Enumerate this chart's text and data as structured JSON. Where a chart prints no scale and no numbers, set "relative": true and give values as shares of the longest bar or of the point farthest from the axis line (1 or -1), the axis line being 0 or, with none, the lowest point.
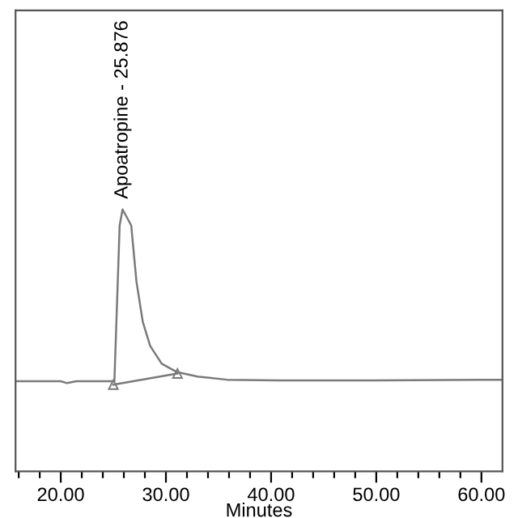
{
  "chart_data": {
    "type": "line",
    "xlabel": "Minutes",
    "relative": true,
    "xlim": [
      15.7,
      62
    ],
    "xticks": [
      {
        "value": 16,
        "label": null
      },
      {
        "value": 18,
        "label": null
      },
      {
        "value": 20,
        "label": "20.00"
      },
      {
        "value": 22,
        "label": null
      },
      {
        "value": 24,
        "label": null
      },
      {
        "value": 26,
        "label": null
      },
      {
        "value": 28,
        "label": null
      },
      {
        "value": 30,
        "label": "30.00"
      },
      {
        "value": 32,
        "label": null
      },
      {
        "value": 34,
        "label": null
      },
      {
        "value": 36,
        "label": null
      },
      {
        "value": 38,
        "label": null
      },
      {
        "value": 40,
        "label": "40.00"
      },
      {
        "value": 42,
        "label": null
      },
      {
        "value": 44,
        "label": null
      },
      {
        "value": 46,
        "label": null
      },
      {
        "value": 48,
        "label": null
      },
      {
        "value": 50,
        "label": "50.00"
      },
      {
        "value": 52,
        "label": null
      },
      {
        "value": 54,
        "label": null
      },
      {
        "value": 56,
        "label": null
      },
      {
        "value": 58,
        "label": null
      },
      {
        "value": 60,
        "label": "60.00"
      }
    ],
    "grid": false,
    "legend": false,
    "series": [
      {
        "color": "#7a7a7a",
        "marker": "none",
        "x": [
          15.7,
          20.0,
          20.6,
          21.5,
          25.1,
          25.6,
          25.876,
          26.7,
          27.2,
          27.8,
          28.5,
          29.6,
          31.0,
          33.0,
          35.8,
          40.7,
          50.0,
          60.0,
          62.0
        ],
        "values": [
          0.344,
          0.344,
          0.337,
          0.344,
          0.344,
          0.939,
          1.0,
          0.939,
          0.724,
          0.571,
          0.479,
          0.411,
          0.38,
          0.362,
          0.35,
          0.347,
          0.347,
          0.35,
          0.35
        ]
      },
      {
        "color": "#7a7a7a",
        "marker": "triangle",
        "x": [
          25.0,
          31.1
        ],
        "values": [
          0.331,
          0.374
        ]
      }
    ],
    "annotations": [
      {
        "text": "Apoatropine - 25.876",
        "x": 25.876,
        "y": 1.0
      }
    ]
  }
}
